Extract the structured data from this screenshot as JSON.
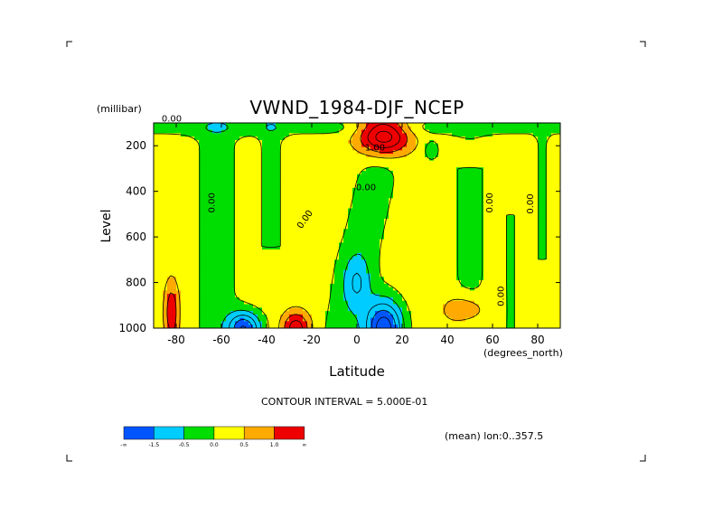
{
  "chart_data": {
    "type": "contour",
    "title": "VWND_1984-DJF_NCEP",
    "xlabel": "Latitude",
    "x_units": "(degrees_north)",
    "ylabel": "Level",
    "y_units": "(millibar)",
    "xlim": [
      -90,
      90
    ],
    "ylim": [
      1000,
      100
    ],
    "x_ticks": [
      -80,
      -60,
      -40,
      -20,
      0,
      20,
      40,
      60,
      80
    ],
    "x_tick_labels": [
      "-80",
      "-60",
      "-40",
      "-20",
      "0",
      "20",
      "40",
      "60",
      "80"
    ],
    "y_ticks": [
      200,
      400,
      600,
      800,
      1000
    ],
    "y_tick_labels": [
      "200",
      "400",
      "600",
      "800",
      "1000"
    ],
    "contour_interval_text": "CONTOUR INTERVAL = 5.000E-01",
    "contour_interval": 0.5,
    "footnote": "(mean) lon:0..357.5",
    "contour_labels": [
      {
        "text": "0.00",
        "lat": -82,
        "lev": 95
      },
      {
        "text": "0.00",
        "lat": -63,
        "lev": 450
      },
      {
        "text": "0.00",
        "lat": -22,
        "lev": 530
      },
      {
        "text": "0.00",
        "lat": 4,
        "lev": 395
      },
      {
        "text": "1.00",
        "lat": 8,
        "lev": 220
      },
      {
        "text": "0.00",
        "lat": 60,
        "lev": 450
      },
      {
        "text": "0.00",
        "lat": 78,
        "lev": 455
      },
      {
        "text": "0.00",
        "lat": 65,
        "lev": 860
      }
    ],
    "colorbar": {
      "colors": [
        "#0055ff",
        "#00ccff",
        "#00dd00",
        "#ffff00",
        "#ffaa00",
        "#ee0000"
      ],
      "labels": [
        "-∞",
        "-1.5",
        "-0.5",
        "0.0",
        "0.5",
        "1.0",
        "∞"
      ]
    },
    "field_levels": [
      -1.5,
      -0.5,
      0.0,
      0.5,
      1.0
    ],
    "field_centers": [
      {
        "lat": 12,
        "lev": 150,
        "amp": 2.6,
        "sx": 11,
        "sy": 90
      },
      {
        "lat": 12,
        "lev": 1000,
        "amp": -2.6,
        "sx": 8,
        "sy": 120
      },
      {
        "lat": 0,
        "lev": 800,
        "amp": -0.9,
        "sx": 6,
        "sy": 120
      },
      {
        "lat": -50,
        "lev": 1000,
        "amp": -2.2,
        "sx": 7,
        "sy": 70
      },
      {
        "lat": -27,
        "lev": 1000,
        "amp": 1.6,
        "sx": 6,
        "sy": 70
      },
      {
        "lat": -82,
        "lev": 930,
        "amp": 1.2,
        "sx": 3,
        "sy": 130
      },
      {
        "lat": 48,
        "lev": 920,
        "amp": 0.9,
        "sx": 9,
        "sy": 70
      },
      {
        "lat": 33,
        "lev": 220,
        "amp": -0.7,
        "sx": 3,
        "sy": 40
      }
    ]
  }
}
